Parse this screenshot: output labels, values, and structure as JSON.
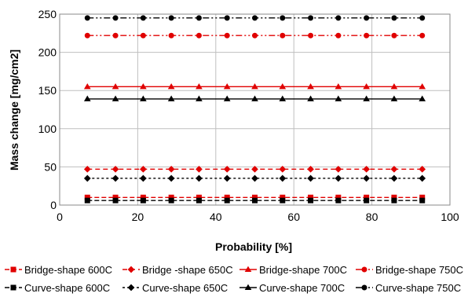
{
  "chart_data": {
    "type": "line",
    "xlabel": "Probability [%]",
    "ylabel": "Mass change [mg/cm2]",
    "xlim": [
      0,
      100
    ],
    "ylim": [
      0,
      250
    ],
    "xticks": [
      "0",
      "20",
      "40",
      "60",
      "80",
      "100"
    ],
    "yticks": [
      "0",
      "50",
      "100",
      "150",
      "200",
      "250"
    ],
    "grid": true,
    "legend_position": "bottom",
    "x": [
      7.1,
      14.3,
      21.4,
      28.6,
      35.7,
      42.9,
      50,
      57.1,
      64.3,
      71.4,
      78.6,
      85.7,
      92.9
    ],
    "series": [
      {
        "name": "Bridge-shape 600C",
        "color": "#e00000",
        "marker": "square",
        "dash": "6,3",
        "value": 10
      },
      {
        "name": "Bridge -shape 650C",
        "color": "#e00000",
        "marker": "diamond",
        "dash": "6,4",
        "value": 47
      },
      {
        "name": "Bridge-shape 700C",
        "color": "#e00000",
        "marker": "triangle",
        "dash": "",
        "value": 155
      },
      {
        "name": "Bridge-shape 750C",
        "color": "#e00000",
        "marker": "circle",
        "dash": "8,3,2,3,2,3",
        "value": 222
      },
      {
        "name": "Curve-shape 600C",
        "color": "#000000",
        "marker": "square",
        "dash": "6,3",
        "value": 6
      },
      {
        "name": "Curve-shape 650C",
        "color": "#000000",
        "marker": "diamond",
        "dash": "3,3",
        "value": 35
      },
      {
        "name": "Curve-shape 700C",
        "color": "#000000",
        "marker": "triangle",
        "dash": "",
        "value": 139
      },
      {
        "name": "Curve-shape 750C",
        "color": "#000000",
        "marker": "circle",
        "dash": "8,3,2,3,2,3",
        "value": 245
      }
    ]
  }
}
